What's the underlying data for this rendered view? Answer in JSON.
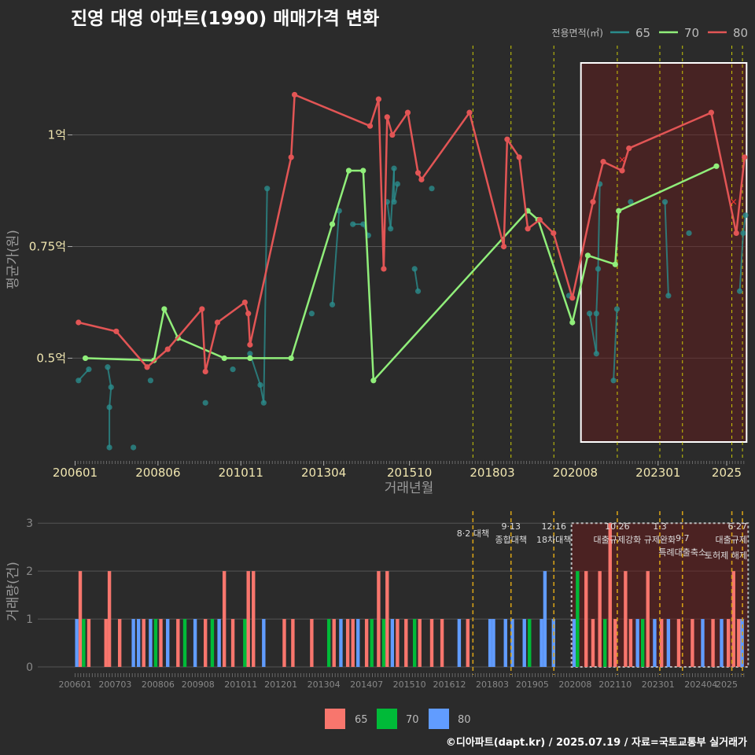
{
  "title": "진영 대영 아파트(1990) 매매가격 변화",
  "credit": "©디아파트(dapt.kr) / 2025.07.19 / 자료=국토교통부 실거래가",
  "colors": {
    "s65": "#2a8c8c",
    "s70": "#90ee7a",
    "s80": "#e25555",
    "b65": "#f8766d",
    "b70": "#00ba38",
    "b80": "#619cff",
    "event": "#e6e600",
    "bgevent": "#d4a017"
  },
  "top_legend": {
    "title": "전용면적(㎡)",
    "items": [
      "65",
      "70",
      "80"
    ]
  },
  "bottom_legend": {
    "items": [
      "65",
      "70",
      "80"
    ]
  },
  "chart_data": [
    {
      "type": "line",
      "name": "price",
      "xlabel": "거래년월",
      "ylabel": "평균가(원)",
      "x_ticks": [
        "200601",
        "200806",
        "201011",
        "201304",
        "201510",
        "201803",
        "202008",
        "202301",
        "2025"
      ],
      "y_ticks": [
        {
          "value": 0.5,
          "label": "0.5억"
        },
        {
          "value": 0.75,
          "label": "0.75억"
        },
        {
          "value": 1.0,
          "label": "1억"
        }
      ],
      "xlim": [
        2005.92,
        2025.55
      ],
      "ylim": [
        0.27,
        1.2
      ],
      "highlight_range": [
        2020.75,
        2025.58
      ],
      "event_lines": [
        2017.6,
        2018.71,
        2019.96,
        2021.81,
        2023.05,
        2023.71,
        2025.15,
        2025.46
      ],
      "series": [
        {
          "name": "80",
          "points": [
            [
              2006.1,
              0.58
            ],
            [
              2007.2,
              0.56
            ],
            [
              2008.1,
              0.48
            ],
            [
              2008.7,
              0.52
            ],
            [
              2009.7,
              0.61
            ],
            [
              2009.8,
              0.47
            ],
            [
              2010.15,
              0.58
            ],
            [
              2010.95,
              0.625
            ],
            [
              2011.05,
              0.6
            ],
            [
              2011.1,
              0.53
            ],
            [
              2012.3,
              0.95
            ],
            [
              2012.4,
              1.09
            ],
            [
              2014.6,
              1.02
            ],
            [
              2014.85,
              1.08
            ],
            [
              2015.0,
              0.7
            ],
            [
              2015.1,
              1.04
            ],
            [
              2015.25,
              1.0
            ],
            [
              2015.7,
              1.05
            ],
            [
              2016.0,
              0.915
            ],
            [
              2016.1,
              0.9
            ],
            [
              2017.5,
              1.05
            ],
            [
              2018.5,
              0.75
            ],
            [
              2018.6,
              0.99
            ],
            [
              2018.95,
              0.95
            ],
            [
              2019.2,
              0.79
            ],
            [
              2019.55,
              0.81
            ],
            [
              2019.95,
              0.78
            ],
            [
              2020.5,
              0.635
            ],
            [
              2021.1,
              0.85
            ],
            [
              2021.4,
              0.94
            ],
            [
              2021.95,
              0.92
            ],
            [
              2022.15,
              0.97
            ],
            [
              2024.55,
              1.05
            ],
            [
              2025.28,
              0.78
            ],
            [
              2025.52,
              0.95
            ]
          ]
        },
        {
          "name": "70",
          "points": [
            [
              2006.3,
              0.5
            ],
            [
              2008.3,
              0.495
            ],
            [
              2008.6,
              0.61
            ],
            [
              2009.0,
              0.545
            ],
            [
              2010.35,
              0.5
            ],
            [
              2011.1,
              0.5
            ],
            [
              2012.3,
              0.5
            ],
            [
              2013.5,
              0.8
            ],
            [
              2013.98,
              0.92
            ],
            [
              2014.4,
              0.92
            ],
            [
              2014.7,
              0.45
            ],
            [
              2019.2,
              0.83
            ],
            [
              2019.5,
              0.81
            ],
            [
              2020.5,
              0.58
            ],
            [
              2020.95,
              0.73
            ],
            [
              2021.75,
              0.71
            ],
            [
              2021.85,
              0.83
            ],
            [
              2024.7,
              0.93
            ]
          ]
        },
        {
          "name": "65",
          "points": [
            [
              2006.1,
              0.45
            ],
            [
              2006.4,
              0.475
            ],
            [
              2006.95,
              0.48
            ],
            [
              2007.05,
              0.435
            ],
            [
              2007.0,
              0.39
            ],
            [
              2007.0,
              0.3
            ],
            [
              2007.7,
              0.3
            ],
            [
              2008.2,
              0.45
            ],
            [
              2009.8,
              0.4
            ],
            [
              2010.6,
              0.475
            ],
            [
              2011.1,
              0.51
            ],
            [
              2011.4,
              0.44
            ],
            [
              2011.5,
              0.4
            ],
            [
              2011.6,
              0.88
            ],
            [
              2012.9,
              0.6
            ],
            [
              2013.5,
              0.62
            ],
            [
              2013.7,
              0.83
            ],
            [
              2014.1,
              0.8
            ],
            [
              2014.4,
              0.8
            ],
            [
              2014.55,
              0.775
            ],
            [
              2015.1,
              0.85
            ],
            [
              2015.2,
              0.79
            ],
            [
              2015.3,
              0.925
            ],
            [
              2015.3,
              0.85
            ],
            [
              2015.4,
              0.89
            ],
            [
              2015.9,
              0.7
            ],
            [
              2016.0,
              0.65
            ],
            [
              2016.4,
              0.88
            ],
            [
              2020.4,
              0.64
            ],
            [
              2021.0,
              0.6
            ],
            [
              2021.2,
              0.51
            ],
            [
              2021.2,
              0.6
            ],
            [
              2021.25,
              0.7
            ],
            [
              2021.3,
              0.89
            ],
            [
              2021.7,
              0.45
            ],
            [
              2021.8,
              0.61
            ],
            [
              2022.2,
              0.85
            ],
            [
              2023.2,
              0.85
            ],
            [
              2023.3,
              0.64
            ],
            [
              2023.9,
              0.78
            ],
            [
              2025.38,
              0.65
            ],
            [
              2025.48,
              0.78
            ],
            [
              2025.55,
              0.82
            ]
          ]
        }
      ],
      "highlight_markers": [
        [
          2021.95,
          0.945
        ],
        [
          2025.2,
          0.85
        ]
      ]
    },
    {
      "type": "bar",
      "name": "volume",
      "ylabel": "거래량(건)",
      "x_ticks": [
        "200601",
        "200703",
        "200806",
        "200908",
        "201011",
        "201201",
        "201304",
        "201407",
        "201510",
        "201612",
        "201803",
        "201905",
        "202008",
        "202110",
        "202301",
        "202404",
        "2025"
      ],
      "yticks": [
        0,
        1,
        2,
        3
      ],
      "ylim": [
        0,
        3.25
      ],
      "highlight_range": [
        2020.75,
        2025.58
      ],
      "event_labels": [
        {
          "x": 2017.6,
          "lines": [
            "8·2 대책"
          ]
        },
        {
          "x": 2018.71,
          "lines": [
            "9·13",
            "종합대책"
          ]
        },
        {
          "x": 2019.96,
          "lines": [
            "12·16",
            "18차대책"
          ]
        },
        {
          "x": 2021.81,
          "lines": [
            "10·26",
            "대출규제강화"
          ]
        },
        {
          "x": 2023.05,
          "lines": [
            "1·3",
            "규제완화"
          ]
        },
        {
          "x": 2023.71,
          "lines": [
            "9·7",
            "특례대출축소"
          ]
        },
        {
          "x": 2025.15,
          "lines": [
            "토허제 해제"
          ]
        },
        {
          "x": 2025.46,
          "lines": [
            "6·27",
            "대출규제"
          ]
        }
      ],
      "counts": [
        [
          2006.05,
          1,
          "80"
        ],
        [
          2006.15,
          2,
          "65"
        ],
        [
          2006.25,
          1,
          "70"
        ],
        [
          2006.4,
          1,
          "65"
        ],
        [
          2006.9,
          1,
          "65"
        ],
        [
          2007.0,
          2,
          "65"
        ],
        [
          2007.3,
          1,
          "65"
        ],
        [
          2007.7,
          1,
          "80"
        ],
        [
          2007.85,
          1,
          "80"
        ],
        [
          2008.0,
          1,
          "65"
        ],
        [
          2008.2,
          1,
          "80"
        ],
        [
          2008.35,
          1,
          "70"
        ],
        [
          2008.5,
          1,
          "65"
        ],
        [
          2008.7,
          1,
          "80"
        ],
        [
          2009.0,
          1,
          "65"
        ],
        [
          2009.2,
          1,
          "70"
        ],
        [
          2009.5,
          1,
          "80"
        ],
        [
          2009.8,
          1,
          "65"
        ],
        [
          2010.0,
          1,
          "70"
        ],
        [
          2010.2,
          1,
          "80"
        ],
        [
          2010.35,
          2,
          "65"
        ],
        [
          2010.6,
          1,
          "65"
        ],
        [
          2010.95,
          1,
          "70"
        ],
        [
          2011.05,
          2,
          "65"
        ],
        [
          2011.2,
          2,
          "65"
        ],
        [
          2011.5,
          1,
          "80"
        ],
        [
          2012.1,
          1,
          "65"
        ],
        [
          2012.35,
          1,
          "65"
        ],
        [
          2012.9,
          1,
          "65"
        ],
        [
          2013.4,
          1,
          "70"
        ],
        [
          2013.55,
          1,
          "65"
        ],
        [
          2013.75,
          1,
          "80"
        ],
        [
          2013.95,
          1,
          "65"
        ],
        [
          2014.1,
          1,
          "65"
        ],
        [
          2014.25,
          1,
          "80"
        ],
        [
          2014.5,
          1,
          "65"
        ],
        [
          2014.65,
          1,
          "70"
        ],
        [
          2014.85,
          2,
          "65"
        ],
        [
          2015.0,
          1,
          "70"
        ],
        [
          2015.1,
          2,
          "65"
        ],
        [
          2015.25,
          1,
          "80"
        ],
        [
          2015.4,
          1,
          "65"
        ],
        [
          2015.65,
          1,
          "65"
        ],
        [
          2015.9,
          1,
          "70"
        ],
        [
          2016.05,
          1,
          "65"
        ],
        [
          2016.4,
          1,
          "65"
        ],
        [
          2016.7,
          1,
          "65"
        ],
        [
          2017.2,
          1,
          "80"
        ],
        [
          2017.45,
          1,
          "65"
        ],
        [
          2018.1,
          1,
          "80"
        ],
        [
          2018.2,
          1,
          "80"
        ],
        [
          2018.55,
          1,
          "80"
        ],
        [
          2018.75,
          1,
          "80"
        ],
        [
          2019.1,
          1,
          "80"
        ],
        [
          2019.25,
          1,
          "70"
        ],
        [
          2019.6,
          1,
          "80"
        ],
        [
          2019.7,
          2,
          "80"
        ],
        [
          2019.95,
          1,
          "80"
        ],
        [
          2020.55,
          1,
          "80"
        ],
        [
          2020.65,
          2,
          "70"
        ],
        [
          2020.9,
          2,
          "65"
        ],
        [
          2021.1,
          1,
          "65"
        ],
        [
          2021.3,
          2,
          "65"
        ],
        [
          2021.45,
          1,
          "70"
        ],
        [
          2021.6,
          3,
          "65"
        ],
        [
          2021.75,
          1,
          "65"
        ],
        [
          2022.05,
          2,
          "65"
        ],
        [
          2022.2,
          1,
          "65"
        ],
        [
          2022.4,
          1,
          "80"
        ],
        [
          2022.55,
          1,
          "70"
        ],
        [
          2022.7,
          2,
          "65"
        ],
        [
          2022.9,
          1,
          "80"
        ],
        [
          2023.1,
          1,
          "65"
        ],
        [
          2023.3,
          1,
          "80"
        ],
        [
          2023.6,
          1,
          "65"
        ],
        [
          2024.0,
          1,
          "65"
        ],
        [
          2024.3,
          1,
          "80"
        ],
        [
          2024.6,
          1,
          "65"
        ],
        [
          2024.85,
          1,
          "80"
        ],
        [
          2025.05,
          1,
          "65"
        ],
        [
          2025.2,
          2,
          "65"
        ],
        [
          2025.35,
          1,
          "65"
        ],
        [
          2025.45,
          1,
          "80"
        ]
      ]
    }
  ]
}
